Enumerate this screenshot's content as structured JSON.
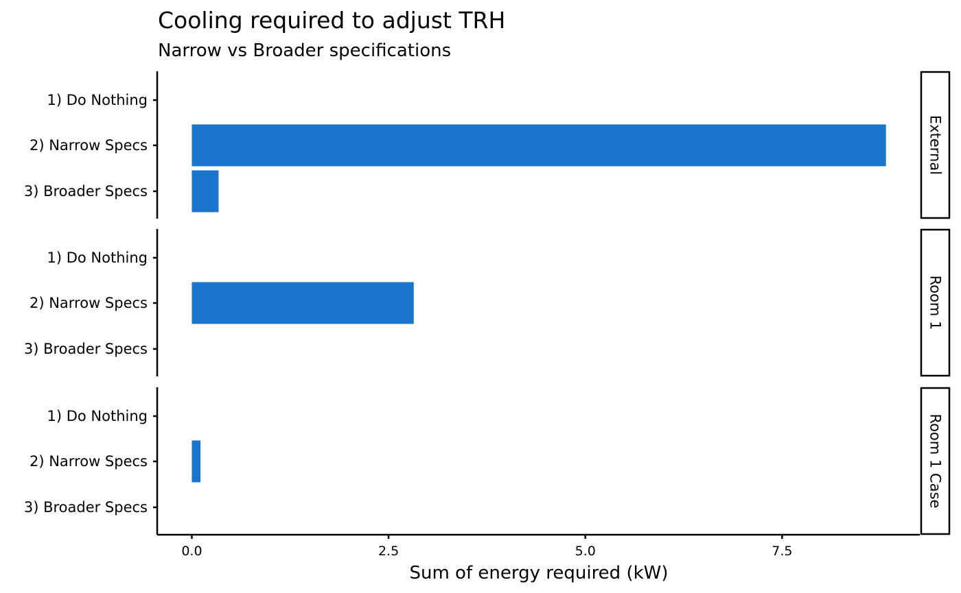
{
  "chart_data": {
    "type": "bar",
    "orientation": "horizontal",
    "title": "Cooling required to adjust TRH",
    "subtitle": "Narrow vs Broader specifications",
    "xlabel": "Sum of energy required (kW)",
    "ylabel": "",
    "xlim": [
      -0.44,
      9.25
    ],
    "xticks": [
      0.0,
      2.5,
      5.0,
      7.5
    ],
    "xtick_labels": [
      "0.0",
      "2.5",
      "5.0",
      "7.5"
    ],
    "categories": [
      "1) Do Nothing",
      "2) Narrow Specs",
      "3) Broader Specs"
    ],
    "bar_color": "#1b75cc",
    "grid": false,
    "legend": "none",
    "facets": [
      {
        "name": "External",
        "values": [
          0,
          8.82,
          0.34
        ]
      },
      {
        "name": "Room 1",
        "values": [
          0,
          2.82,
          0
        ]
      },
      {
        "name": "Room 1 Case",
        "values": [
          0,
          0.11,
          0
        ]
      }
    ]
  }
}
